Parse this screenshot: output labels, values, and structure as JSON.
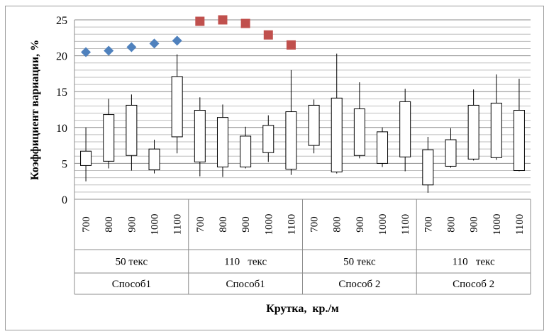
{
  "chart_data": {
    "type": "candlestick",
    "ylabel": "Коэффициент  вариации,  %",
    "xlabel": "Крутка,  кр./м",
    "ylim": [
      0,
      25
    ],
    "yticks": [
      0,
      5,
      10,
      15,
      20,
      25
    ],
    "ytick_labels": [
      "0",
      "5",
      "10",
      "15",
      "20",
      "25"
    ],
    "grid": true,
    "twist_labels": [
      "700",
      "800",
      "900",
      "1000",
      "1100",
      "700",
      "800",
      "900",
      "1000",
      "1100",
      "700",
      "800",
      "900",
      "1000",
      "1100",
      "700",
      "800",
      "900",
      "1000",
      "1100"
    ],
    "groups": [
      {
        "linear_density": "50 текс",
        "method": "Способ1"
      },
      {
        "linear_density": "110   текс",
        "method": "Способ1"
      },
      {
        "linear_density": "50 текс",
        "method": "Способ 2"
      },
      {
        "linear_density": "110   текс",
        "method": "Способ 2"
      }
    ],
    "candles": [
      {
        "low": 2.5,
        "high": 10.0,
        "open": 4.7,
        "close": 6.7
      },
      {
        "low": 4.3,
        "high": 14.0,
        "open": 5.3,
        "close": 11.8
      },
      {
        "low": 4.0,
        "high": 14.6,
        "open": 6.1,
        "close": 13.1
      },
      {
        "low": 3.6,
        "high": 8.3,
        "open": 4.1,
        "close": 7.0
      },
      {
        "low": 6.4,
        "high": 20.2,
        "open": 8.7,
        "close": 17.1
      },
      {
        "low": 3.2,
        "high": 14.2,
        "open": 5.2,
        "close": 12.4
      },
      {
        "low": 3.1,
        "high": 13.2,
        "open": 4.5,
        "close": 11.4
      },
      {
        "low": 4.3,
        "high": 10.1,
        "open": 4.5,
        "close": 8.8
      },
      {
        "low": 5.2,
        "high": 11.7,
        "open": 6.5,
        "close": 10.3
      },
      {
        "low": 3.4,
        "high": 18.0,
        "open": 4.2,
        "close": 12.2
      },
      {
        "low": 6.4,
        "high": 13.9,
        "open": 7.5,
        "close": 13.1
      },
      {
        "low": 3.6,
        "high": 20.3,
        "open": 3.8,
        "close": 14.1
      },
      {
        "low": 5.7,
        "high": 16.3,
        "open": 6.1,
        "close": 12.6
      },
      {
        "low": 4.5,
        "high": 10.0,
        "open": 5.0,
        "close": 9.4
      },
      {
        "low": 3.9,
        "high": 15.4,
        "open": 5.9,
        "close": 13.6
      },
      {
        "low": 0.9,
        "high": 8.7,
        "open": 2.0,
        "close": 6.9
      },
      {
        "low": 4.4,
        "high": 9.9,
        "open": 4.6,
        "close": 8.3
      },
      {
        "low": 5.4,
        "high": 15.3,
        "open": 5.6,
        "close": 13.1
      },
      {
        "low": 5.5,
        "high": 17.4,
        "open": 5.8,
        "close": 13.4
      },
      {
        "low": 3.9,
        "high": 16.8,
        "open": 4.0,
        "close": 12.4
      }
    ],
    "diamond_markers": {
      "color": "#4f81bd",
      "indices": [
        0,
        1,
        2,
        3,
        4
      ],
      "values": [
        20.5,
        20.7,
        21.2,
        21.7,
        22.1
      ]
    },
    "square_markers": {
      "color": "#c0504d",
      "indices": [
        5,
        6,
        7,
        8,
        9
      ],
      "values": [
        24.8,
        25.0,
        24.5,
        22.9,
        21.5
      ]
    }
  }
}
